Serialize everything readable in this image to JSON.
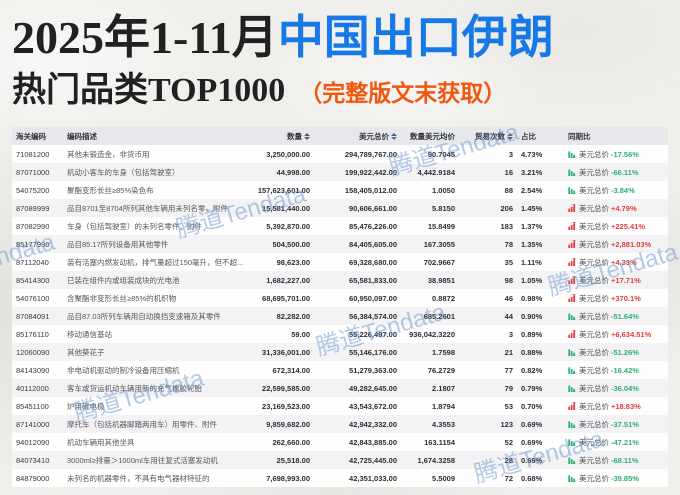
{
  "header": {
    "title_prefix": "2025年1-11月",
    "title_highlight": "中国出口伊朗",
    "subtitle": "热门品类TOP1000",
    "subtitle_note": "（完整版文末获取）",
    "title_prefix_color": "#212121",
    "title_highlight_color": "#1778e8",
    "subtitle_note_color": "#f1570f"
  },
  "watermark": {
    "text": "腾道Tendata",
    "color": "rgba(100,145,205,0.48)"
  },
  "table": {
    "columns": [
      {
        "label": "海关编码",
        "sortable": false
      },
      {
        "label": "编码描述",
        "sortable": false
      },
      {
        "label": "数量",
        "sortable": true,
        "sort": "none"
      },
      {
        "label": "美元总价",
        "sortable": true,
        "sort": "desc"
      },
      {
        "label": "数量美元均价",
        "sortable": false
      },
      {
        "label": "贸易次数",
        "sortable": true,
        "sort": "none"
      },
      {
        "label": "占比",
        "sortable": false
      },
      {
        "label": "同期比",
        "sortable": false
      }
    ],
    "yoy_metric_label": "美元总价",
    "trend_colors": {
      "up": "#e23c3c",
      "down": "#2fae76"
    },
    "rows": [
      {
        "code": "71081200",
        "desc": "其他未锻造金，非货币用",
        "qty": "3,250,000.00",
        "usd": "294,789,767.00",
        "avg": "90.7045",
        "trades": "3",
        "share": "4.73%",
        "trend": "down",
        "change": "-17.56%"
      },
      {
        "code": "87071000",
        "desc": "机动小客车的车身（包括驾驶室）",
        "qty": "44,998.00",
        "usd": "199,922,442.00",
        "avg": "4,442.9184",
        "trades": "16",
        "share": "3.21%",
        "trend": "down",
        "change": "-66.11%"
      },
      {
        "code": "54075200",
        "desc": "聚酯变形长丝≥85%染色布",
        "qty": "157,623,601.00",
        "usd": "158,405,012.00",
        "avg": "1.0050",
        "trades": "88",
        "share": "2.54%",
        "trend": "down",
        "change": "-3.84%"
      },
      {
        "code": "87089999",
        "desc": "品目8701至8704所列其他车辆用未列名零、附件",
        "qty": "15,581,440.00",
        "usd": "90,606,661.00",
        "avg": "5.8150",
        "trades": "206",
        "share": "1.45%",
        "trend": "up",
        "change": "+4.79%"
      },
      {
        "code": "87082990",
        "desc": "车身（包括驾驶室）的未列名零件、附件",
        "qty": "5,392,870.00",
        "usd": "85,476,226.00",
        "avg": "15.8499",
        "trades": "183",
        "share": "1.37%",
        "trend": "up",
        "change": "+225.41%"
      },
      {
        "code": "85177990",
        "desc": "品目85.17所列设备用其他零件",
        "qty": "504,500.00",
        "usd": "84,405,605.00",
        "avg": "167.3055",
        "trades": "78",
        "share": "1.35%",
        "trend": "up",
        "change": "+2,881.03%"
      },
      {
        "code": "87112040",
        "desc": "装有活塞内燃发动机，排气量超过150毫升，但不超...",
        "qty": "98,623.00",
        "usd": "69,328,680.00",
        "avg": "702.9667",
        "trades": "35",
        "share": "1.11%",
        "trend": "up",
        "change": "+4.33%"
      },
      {
        "code": "85414300",
        "desc": "已装在组件内或组装成块的光电池",
        "qty": "1,682,227.00",
        "usd": "65,581,833.00",
        "avg": "38.9851",
        "trades": "98",
        "share": "1.05%",
        "trend": "up",
        "change": "+17.71%"
      },
      {
        "code": "54076100",
        "desc": "含聚酯非变形长丝≥85%的机织物",
        "qty": "68,695,701.00",
        "usd": "60,950,097.00",
        "avg": "0.8872",
        "trades": "46",
        "share": "0.98%",
        "trend": "up",
        "change": "+370.1%"
      },
      {
        "code": "87084091",
        "desc": "品目87.03所列车辆用自动换挡变速箱及其零件",
        "qty": "82,282.00",
        "usd": "56,384,574.00",
        "avg": "685.2601",
        "trades": "44",
        "share": "0.90%",
        "trend": "down",
        "change": "-51.64%"
      },
      {
        "code": "85176110",
        "desc": "移动通信基站",
        "qty": "59.00",
        "usd": "55,226,497.00",
        "avg": "936,042.3220",
        "trades": "3",
        "share": "0.89%",
        "trend": "up",
        "change": "+6,634.51%"
      },
      {
        "code": "12060090",
        "desc": "其他葵花子",
        "qty": "31,336,001.00",
        "usd": "55,146,176.00",
        "avg": "1.7598",
        "trades": "21",
        "share": "0.88%",
        "trend": "down",
        "change": "-51.26%"
      },
      {
        "code": "84143090",
        "desc": "非电动机驱动的制冷设备用压缩机",
        "qty": "672,314.00",
        "usd": "51,279,363.00",
        "avg": "76.2729",
        "trades": "77",
        "share": "0.82%",
        "trend": "down",
        "change": "-16.42%"
      },
      {
        "code": "40112000",
        "desc": "客车或货运机动车辆用新的充气橡胶轮胎",
        "qty": "22,599,585.00",
        "usd": "49,282,645.00",
        "avg": "2.1807",
        "trades": "79",
        "share": "0.79%",
        "trend": "down",
        "change": "-36.04%"
      },
      {
        "code": "85451100",
        "desc": "炉用碳电极",
        "qty": "23,169,523.00",
        "usd": "43,543,672.00",
        "avg": "1.8794",
        "trades": "53",
        "share": "0.70%",
        "trend": "up",
        "change": "+18.83%"
      },
      {
        "code": "87141000",
        "desc": "摩托车（包括机器脚踏两用车）用零件、附件",
        "qty": "9,859,682.00",
        "usd": "42,942,332.00",
        "avg": "4.3553",
        "trades": "123",
        "share": "0.69%",
        "trend": "down",
        "change": "-37.51%"
      },
      {
        "code": "94012090",
        "desc": "机动车辆用其他坐具",
        "qty": "262,660.00",
        "usd": "42,843,885.00",
        "avg": "163.1154",
        "trades": "52",
        "share": "0.69%",
        "trend": "down",
        "change": "-47.21%"
      },
      {
        "code": "84073410",
        "desc": "3000ml≥排量＞1000ml车用往复式活塞发动机",
        "qty": "25,518.00",
        "usd": "42,725,445.00",
        "avg": "1,674.3258",
        "trades": "28",
        "share": "0.69%",
        "trend": "down",
        "change": "-68.11%"
      },
      {
        "code": "84879000",
        "desc": "未列名的机器零件，不具有电气器材特征的",
        "qty": "7,698,993.00",
        "usd": "42,351,033.00",
        "avg": "5.5009",
        "trades": "72",
        "share": "0.68%",
        "trend": "down",
        "change": "-39.85%"
      }
    ]
  },
  "chart_data": {
    "type": "table",
    "title": "2025年1-11月中国出口伊朗热门品类TOP1000",
    "columns": [
      "海关编码",
      "编码描述",
      "数量",
      "美元总价",
      "数量美元均价",
      "贸易次数",
      "占比",
      "同期比"
    ]
  }
}
